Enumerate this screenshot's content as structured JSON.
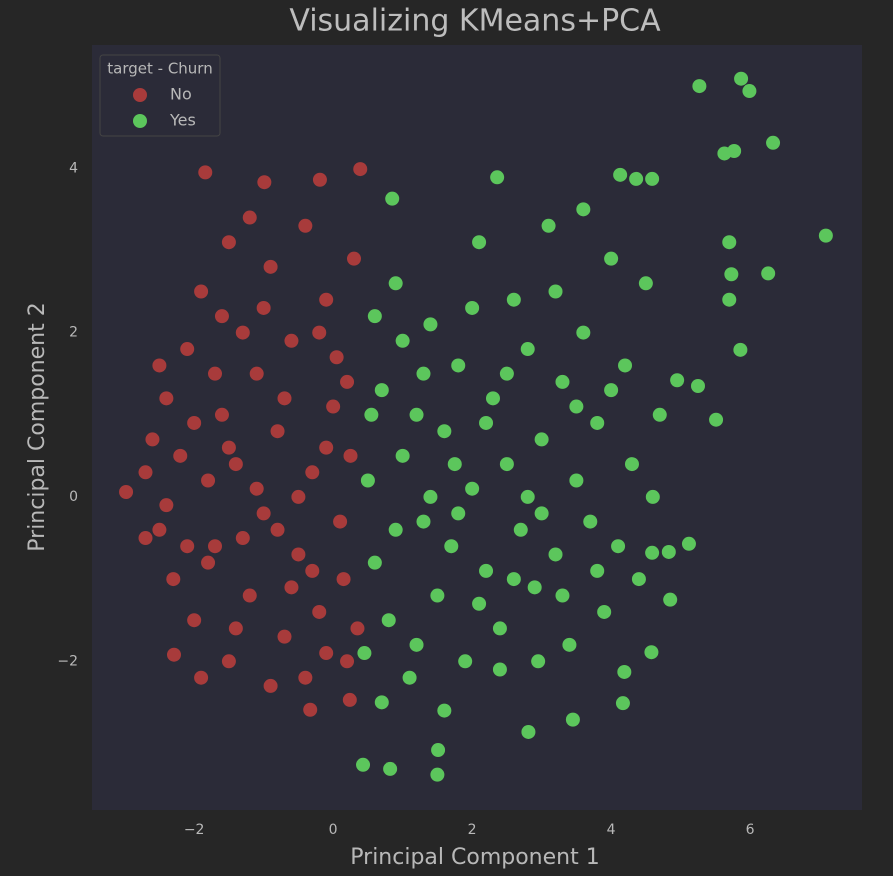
{
  "chart_data": {
    "type": "scatter",
    "title": "Visualizing KMeans+PCA",
    "x_label": "Principal Component 1",
    "y_label": "Principal Component 2",
    "legend_title": "target - Churn",
    "legend": "upper left",
    "grid": false,
    "xlim": [
      -3.47,
      7.61
    ],
    "ylim": [
      -3.81,
      5.5
    ],
    "xticks": [
      {
        "value": -2,
        "label": "−2"
      },
      0,
      2,
      4,
      6
    ],
    "yticks": [
      {
        "value": -2,
        "label": "−2"
      },
      0,
      2,
      4
    ],
    "series": [
      {
        "name": "No",
        "color": "#a83b3b",
        "x": [
          -2.98,
          -1.84,
          -0.99,
          0.39,
          -0.19,
          -2.29,
          -0.33,
          0.24,
          -2.6,
          -2.7,
          -2.5,
          -2.4,
          -2.3,
          -2.2,
          -2.1,
          -2.0,
          -1.9,
          -1.8,
          -1.7,
          -1.6,
          -1.5,
          -1.5,
          -1.4,
          -1.3,
          -1.2,
          -1.1,
          -1.0,
          -0.9,
          -0.8,
          -0.7,
          -0.6,
          -0.5,
          -0.4,
          -0.3,
          -0.2,
          -0.1,
          0.0,
          0.1,
          0.2,
          0.3,
          0.25,
          0.15,
          -2.4,
          -2.0,
          -1.8,
          -1.6,
          -1.3,
          -1.1,
          -0.9,
          -0.7,
          -0.5,
          -0.3,
          -0.1,
          0.05,
          -1.7,
          -2.1,
          -1.4,
          -0.6,
          -1.2,
          -0.2,
          0.35,
          -2.7,
          -1.9,
          -1.0,
          -0.4,
          0.2,
          -2.5,
          -1.5,
          -0.8,
          -0.1
        ],
        "values": [
          0.06,
          3.95,
          3.83,
          3.99,
          3.86,
          -1.92,
          -2.59,
          -2.47,
          0.7,
          0.3,
          -0.4,
          1.2,
          -1.0,
          0.5,
          1.8,
          -1.5,
          2.5,
          0.2,
          -0.6,
          1.0,
          3.1,
          -2.0,
          0.4,
          2.0,
          -1.2,
          1.5,
          -0.2,
          2.8,
          0.8,
          -1.7,
          1.9,
          -0.7,
          3.3,
          0.3,
          -1.4,
          2.4,
          1.1,
          -0.3,
          -2.0,
          2.9,
          0.5,
          -1.0,
          -0.1,
          0.9,
          -0.8,
          2.2,
          -0.5,
          0.1,
          -2.3,
          1.2,
          0.0,
          -0.9,
          0.6,
          1.7,
          1.5,
          -0.6,
          -1.6,
          -1.1,
          3.4,
          2.0,
          -1.6,
          -0.5,
          -2.2,
          2.3,
          -2.2,
          1.4,
          1.6,
          0.6,
          -0.4,
          -1.9
        ]
      },
      {
        "name": "Yes",
        "color": "#5cc65c",
        "x": [
          5.27,
          5.87,
          5.99,
          6.33,
          7.09,
          5.63,
          5.77,
          5.7,
          5.73,
          6.26,
          5.7,
          5.86,
          5.51,
          5.25,
          4.95,
          5.12,
          4.83,
          4.59,
          4.85,
          4.58,
          4.19,
          4.17,
          3.45,
          2.81,
          2.36,
          0.85,
          0.43,
          0.82,
          1.5,
          1.51,
          4.13,
          4.36,
          4.59,
          0.5,
          0.6,
          0.7,
          0.8,
          0.9,
          1.0,
          1.1,
          1.2,
          1.3,
          1.4,
          1.5,
          1.6,
          1.7,
          1.8,
          1.9,
          2.0,
          2.1,
          2.2,
          2.3,
          2.4,
          2.5,
          2.6,
          2.7,
          2.8,
          2.9,
          3.0,
          3.1,
          3.2,
          3.3,
          3.4,
          3.5,
          3.6,
          3.7,
          3.8,
          3.9,
          4.0,
          4.1,
          4.2,
          4.3,
          4.4,
          4.5,
          4.6,
          4.7,
          0.6,
          0.7,
          1.0,
          1.2,
          1.4,
          1.6,
          1.8,
          2.0,
          2.2,
          2.4,
          2.6,
          2.8,
          3.0,
          3.2,
          3.5,
          3.8,
          4.0,
          0.45,
          0.9,
          1.3,
          2.1,
          2.5,
          3.3,
          3.6,
          0.55,
          1.75,
          2.95
        ],
        "values": [
          5.0,
          5.09,
          4.94,
          4.31,
          3.18,
          4.18,
          4.21,
          3.1,
          2.71,
          2.72,
          2.4,
          1.79,
          0.94,
          1.35,
          1.42,
          -0.57,
          -0.67,
          -0.68,
          -1.25,
          -1.89,
          -2.13,
          -2.51,
          -2.71,
          -2.86,
          3.89,
          3.63,
          -3.26,
          -3.31,
          -3.38,
          -3.08,
          3.92,
          3.87,
          3.87,
          0.2,
          -0.8,
          1.3,
          -1.5,
          2.6,
          0.5,
          -2.2,
          1.0,
          -0.3,
          2.1,
          -1.2,
          0.8,
          -0.6,
          1.6,
          -2.0,
          0.1,
          3.1,
          -0.9,
          1.2,
          -1.6,
          0.4,
          2.4,
          -0.4,
          1.8,
          -1.1,
          0.7,
          3.3,
          -0.7,
          1.4,
          -1.8,
          0.2,
          2.0,
          -0.3,
          0.9,
          -1.4,
          2.9,
          -0.6,
          1.6,
          0.4,
          -1.0,
          2.6,
          0.0,
          1.0,
          2.2,
          -2.5,
          1.9,
          -1.8,
          0.0,
          -2.6,
          -0.2,
          2.3,
          0.9,
          -2.1,
          -1.0,
          0.0,
          -0.2,
          2.5,
          1.1,
          -0.9,
          1.3,
          -1.9,
          -0.4,
          1.5,
          -1.3,
          1.5,
          -1.2,
          3.5,
          1.0,
          0.4,
          -2.0
        ]
      }
    ]
  }
}
